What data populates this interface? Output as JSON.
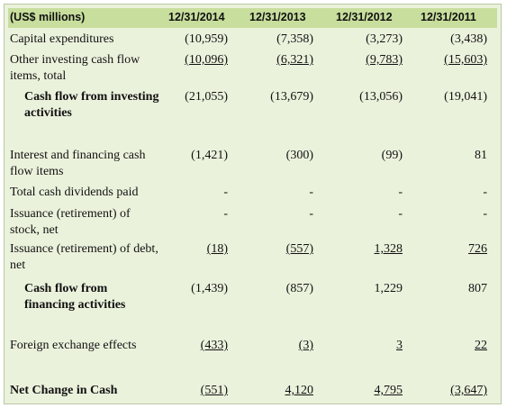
{
  "table": {
    "header": [
      "(US$ millions)",
      "12/31/2014",
      "12/31/2013",
      "12/31/2012",
      "12/31/2011"
    ],
    "rows": [
      [
        "Capital expenditures",
        "(10,959)",
        "(7,358)",
        "(3,273)",
        "(3,438)"
      ],
      [
        "Other investing cash flow items, total",
        "(10,096)",
        "(6,321)",
        "(9,783)",
        "(15,603)"
      ],
      [
        "Cash flow from investing activities",
        "(21,055)",
        "(13,679)",
        "(13,056)",
        "(19,041)"
      ],
      [
        "Interest and financing cash flow items",
        "(1,421)",
        "(300)",
        "(99)",
        "81"
      ],
      [
        "Total cash dividends paid",
        "-",
        "-",
        "-",
        "-"
      ],
      [
        "Issuance (retirement) of stock, net",
        "-",
        "-",
        "-",
        "-"
      ],
      [
        "Issuance (retirement) of debt, net",
        "(18)",
        "(557)",
        "1,328",
        "726"
      ],
      [
        "Cash flow from financing activities",
        "(1,439)",
        "(857)",
        "1,229",
        "807"
      ],
      [
        "Foreign exchange effects",
        "(433)",
        "(3)",
        "3",
        "22"
      ],
      [
        "Net Change in Cash",
        "(551)",
        "4,120",
        "4,795",
        "(3,647)"
      ]
    ]
  }
}
